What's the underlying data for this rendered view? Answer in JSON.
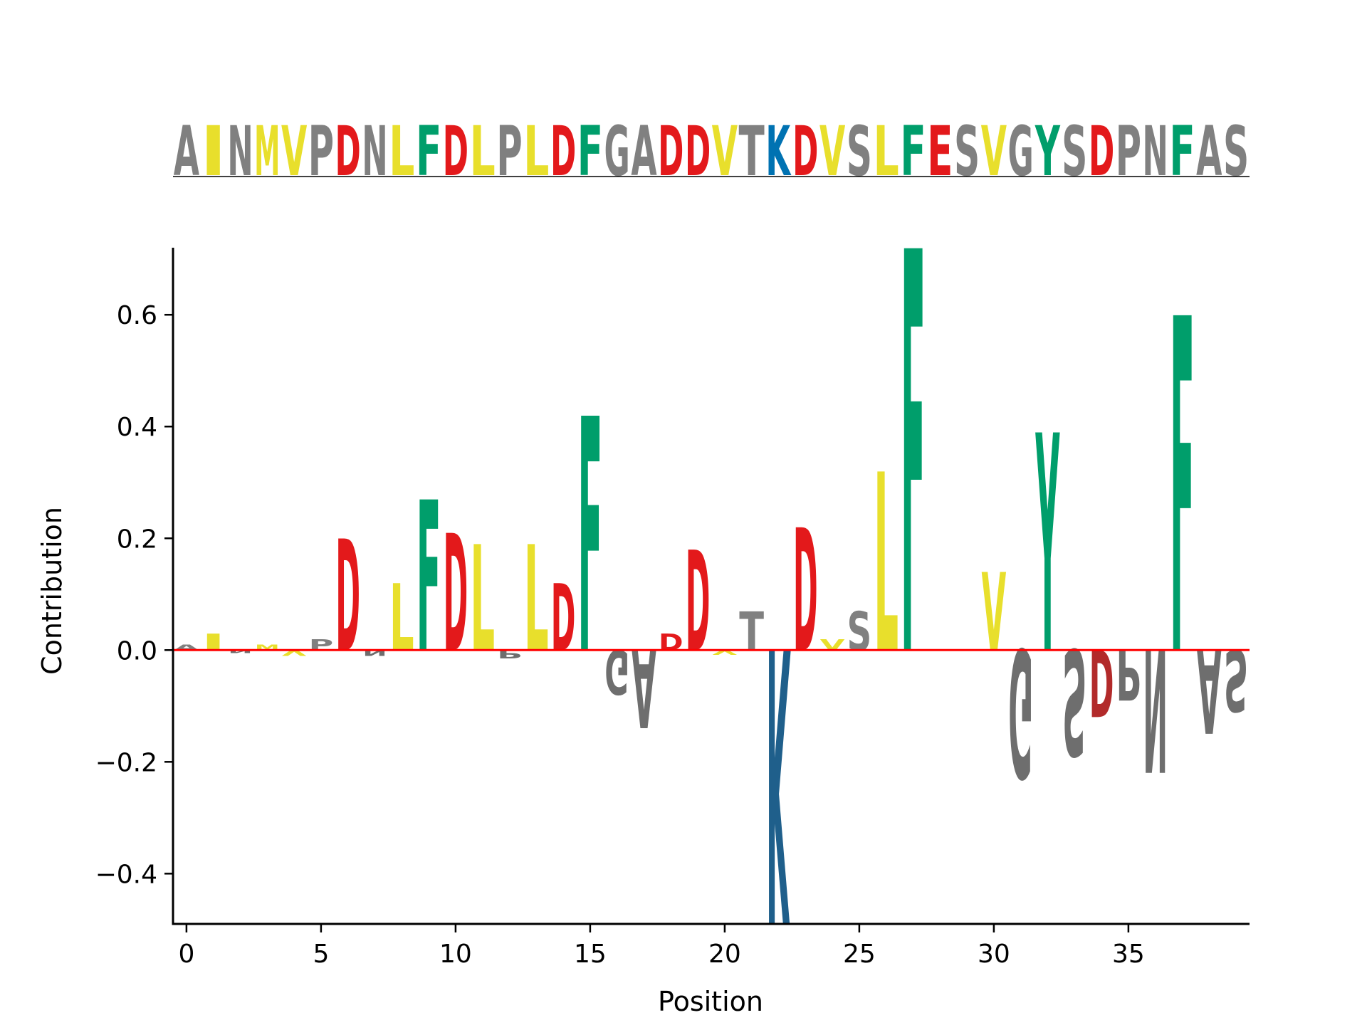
{
  "sequence": "AINMVPDNLFDLPLDFGADDVTKDVSLFESVGYSDPNFAS",
  "colors": {
    "hydrophobic": "#e8df2c",
    "acidic": "#e3191b",
    "aromatic_polar": "#009e6b",
    "basic": "#0072b2",
    "other": "#808080",
    "zero_line": "#ff0000",
    "axis": "#000000"
  },
  "residue_groups": {
    "hydrophobic": [
      "I",
      "L",
      "M",
      "V"
    ],
    "acidic": [
      "D",
      "E"
    ],
    "aromatic_polar": [
      "F",
      "Y",
      "W"
    ],
    "basic": [
      "K",
      "R",
      "H"
    ]
  },
  "chart_data": {
    "type": "logo",
    "xlabel": "Position",
    "ylabel": "Contribution",
    "xlim": [
      -0.5,
      39.5
    ],
    "ylim": [
      -0.49,
      0.72
    ],
    "xticks": [
      0,
      5,
      10,
      15,
      20,
      25,
      30,
      35
    ],
    "yticks": [
      -0.4,
      -0.2,
      0.0,
      0.2,
      0.4,
      0.6
    ],
    "ytick_labels": [
      "−0.4",
      "−0.2",
      "0.0",
      "0.2",
      "0.4",
      "0.6"
    ],
    "zero_line": true,
    "positions": [
      0,
      1,
      2,
      3,
      4,
      5,
      6,
      7,
      8,
      9,
      10,
      11,
      12,
      13,
      14,
      15,
      16,
      17,
      18,
      19,
      20,
      21,
      22,
      23,
      24,
      25,
      26,
      27,
      28,
      29,
      30,
      31,
      32,
      33,
      34,
      35,
      36,
      37,
      38,
      39
    ],
    "residues": [
      "A",
      "I",
      "N",
      "M",
      "V",
      "P",
      "D",
      "N",
      "L",
      "F",
      "D",
      "L",
      "P",
      "L",
      "D",
      "F",
      "G",
      "A",
      "D",
      "D",
      "V",
      "T",
      "K",
      "D",
      "V",
      "S",
      "L",
      "F",
      "E",
      "S",
      "V",
      "G",
      "Y",
      "S",
      "D",
      "P",
      "N",
      "F",
      "A",
      "S"
    ],
    "values": [
      0.01,
      0.03,
      -0.005,
      0.01,
      -0.01,
      0.02,
      0.2,
      -0.01,
      0.12,
      0.27,
      0.21,
      0.19,
      -0.015,
      0.19,
      0.12,
      0.42,
      -0.08,
      -0.14,
      0.03,
      0.18,
      -0.008,
      0.07,
      -0.49,
      0.22,
      0.02,
      0.07,
      0.32,
      0.72,
      0.0,
      0.0,
      0.14,
      -0.23,
      0.39,
      -0.19,
      -0.12,
      -0.09,
      -0.22,
      0.6,
      -0.15,
      -0.11
    ]
  }
}
